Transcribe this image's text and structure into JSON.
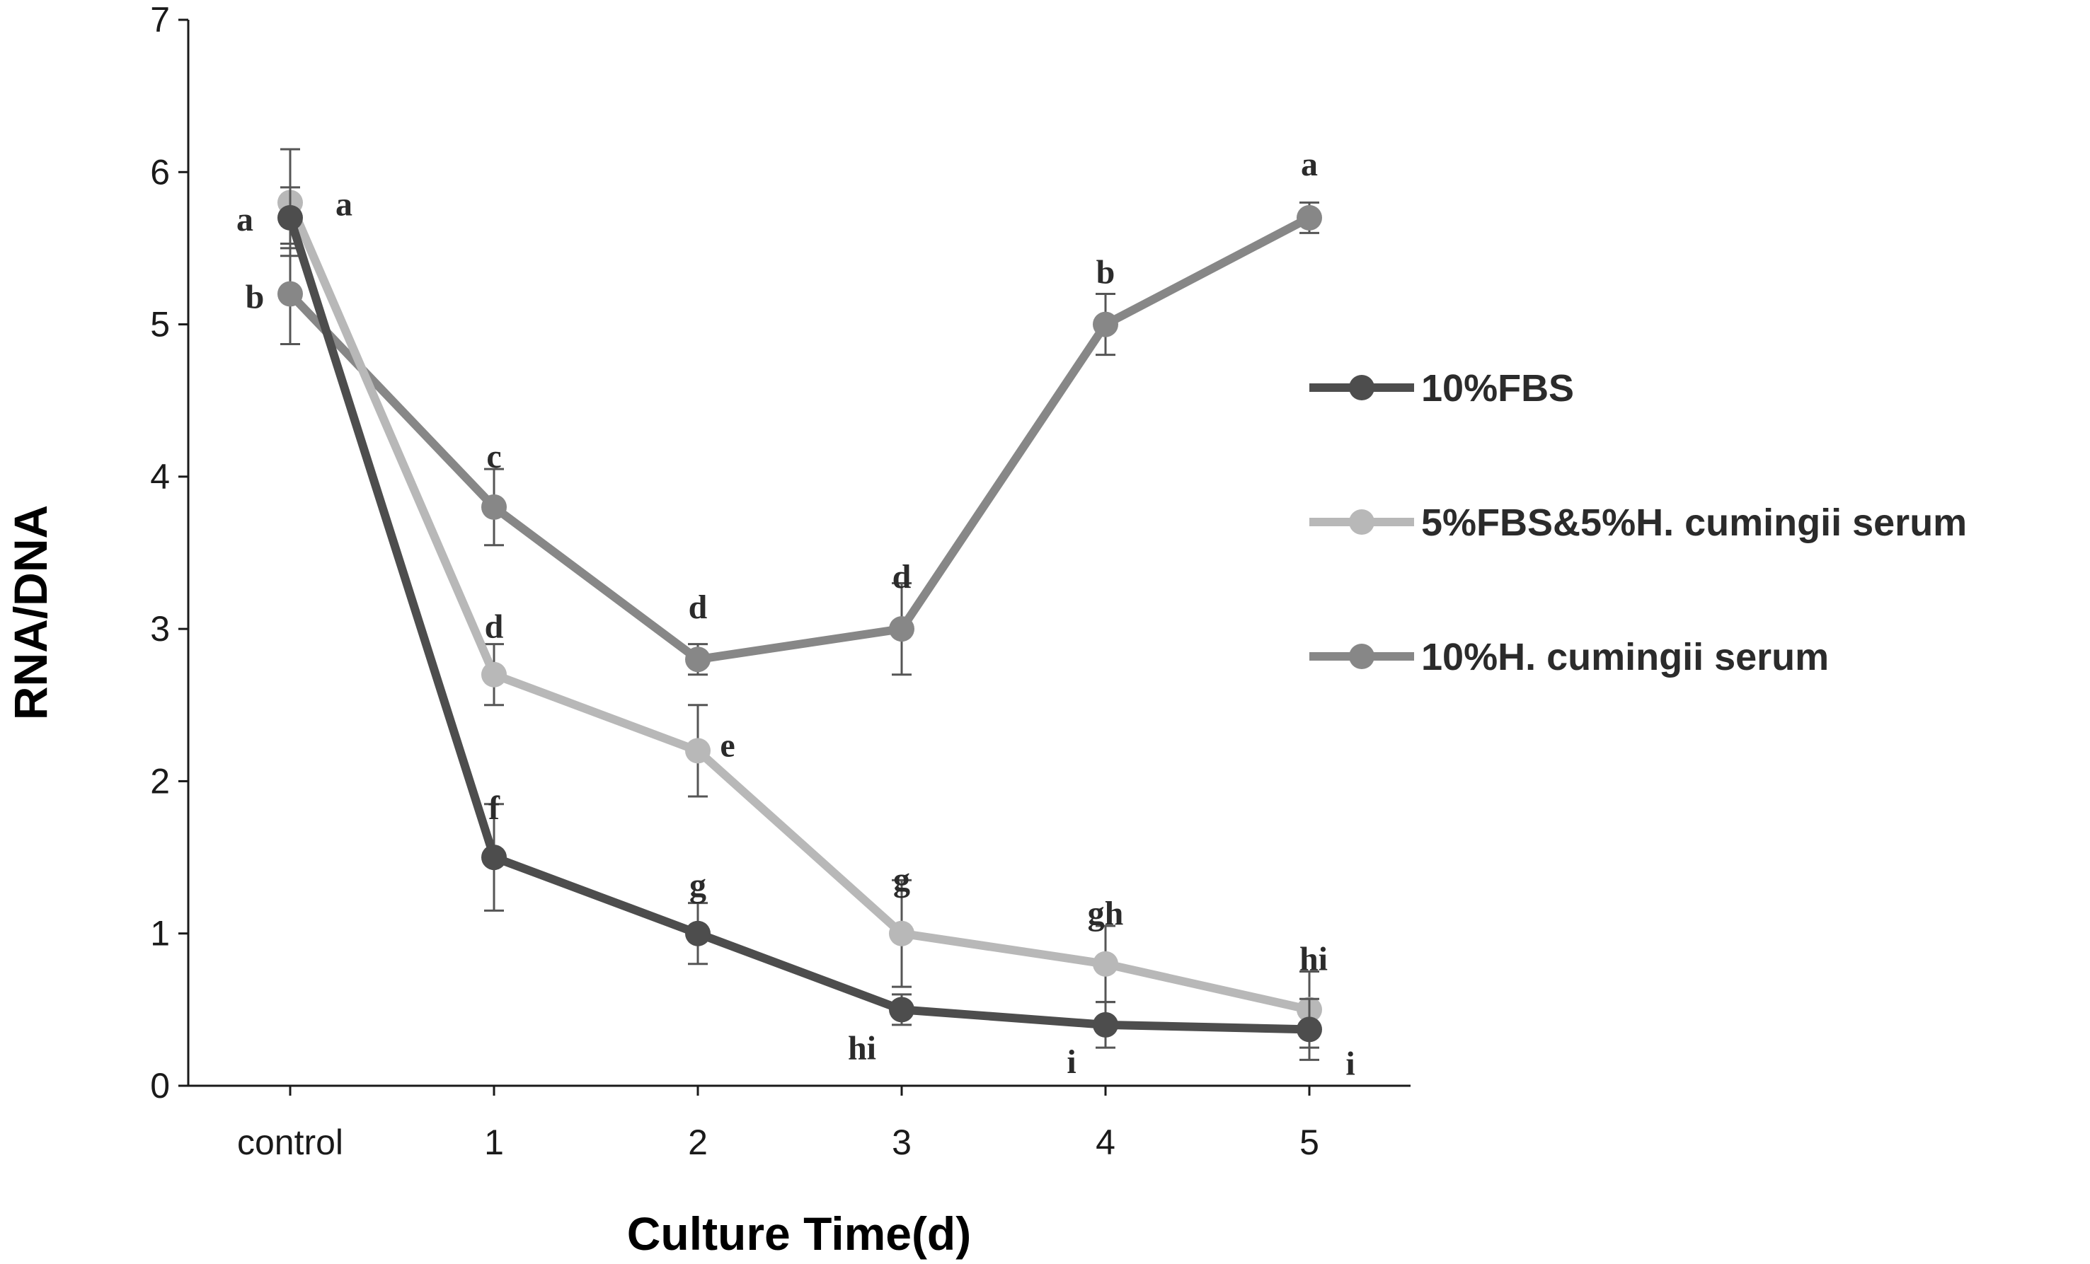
{
  "chart_data": {
    "type": "line",
    "title": "",
    "xlabel": "Culture Time(d)",
    "ylabel": "RNA/DNA",
    "categories": [
      "control",
      "1",
      "2",
      "3",
      "4",
      "5"
    ],
    "ylim": [
      0,
      7
    ],
    "yticks": [
      "0",
      "1",
      "2",
      "3",
      "4",
      "5",
      "6",
      "7"
    ],
    "grid": false,
    "legend_position": "right",
    "series": [
      {
        "name": "10%FBS",
        "color": "#4d4d4d",
        "values": [
          5.7,
          1.5,
          1.0,
          0.5,
          0.4,
          0.37
        ],
        "errors": [
          0.2,
          0.35,
          0.2,
          0.1,
          0.15,
          0.2
        ],
        "labels": [
          "a",
          "f",
          "g",
          "hi",
          "i",
          "i"
        ]
      },
      {
        "name": "5%FBS&5%H. cumingii serum",
        "color": "#b8b8b8",
        "values": [
          5.8,
          2.7,
          2.2,
          1.0,
          0.8,
          0.5
        ],
        "errors": [
          0.35,
          0.2,
          0.3,
          0.35,
          0.25,
          0.25
        ],
        "labels": [
          "a",
          "d",
          "e",
          "g",
          "gh",
          "hi"
        ]
      },
      {
        "name": "10%H. cumingii serum",
        "color": "#878787",
        "values": [
          5.2,
          3.8,
          2.8,
          3.0,
          5.0,
          5.7
        ],
        "errors": [
          0.33,
          0.25,
          0.1,
          0.3,
          0.2,
          0.1
        ],
        "labels": [
          "b",
          "c",
          "d",
          "d",
          "b",
          "a"
        ]
      }
    ]
  }
}
